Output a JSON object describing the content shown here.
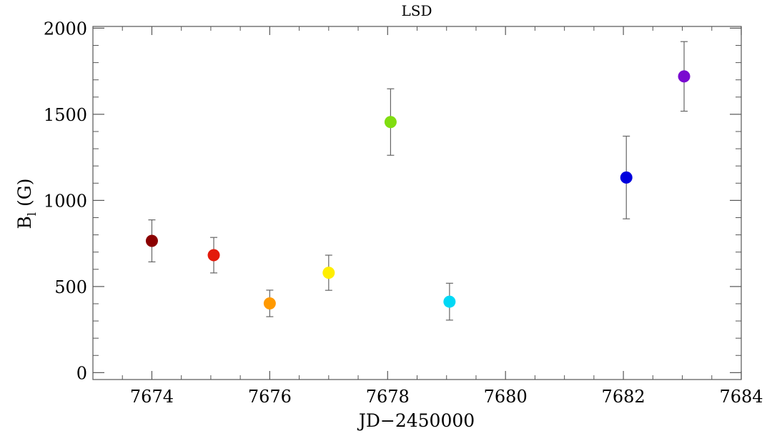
{
  "chart_data": {
    "type": "scatter",
    "title": "LSD",
    "xlabel": "JD−2450000",
    "ylabel": "B",
    "ylabel_subscript": "l",
    "ylabel_unit": " (G)",
    "xlim": [
      7673,
      7684
    ],
    "ylim": [
      -40,
      2010
    ],
    "x_ticks": [
      7674,
      7676,
      7678,
      7680,
      7682,
      7684
    ],
    "y_ticks": [
      0,
      500,
      1000,
      1500,
      2000
    ],
    "x_minor_step": 0.5,
    "y_minor_step": 100,
    "grid": false,
    "points": [
      {
        "x": 7674.0,
        "y": 765,
        "err": 122,
        "color": "#8b0000"
      },
      {
        "x": 7675.05,
        "y": 682,
        "err": 103,
        "color": "#e31a0b"
      },
      {
        "x": 7676.0,
        "y": 402,
        "err": 77,
        "color": "#ff9900"
      },
      {
        "x": 7677.0,
        "y": 580,
        "err": 102,
        "color": "#ffee00"
      },
      {
        "x": 7678.05,
        "y": 1455,
        "err": 193,
        "color": "#80dd10"
      },
      {
        "x": 7679.05,
        "y": 412,
        "err": 107,
        "color": "#00d8f5"
      },
      {
        "x": 7682.05,
        "y": 1133,
        "err": 240,
        "color": "#0000dd"
      },
      {
        "x": 7683.03,
        "y": 1720,
        "err": 202,
        "color": "#7a0ad0"
      }
    ]
  }
}
